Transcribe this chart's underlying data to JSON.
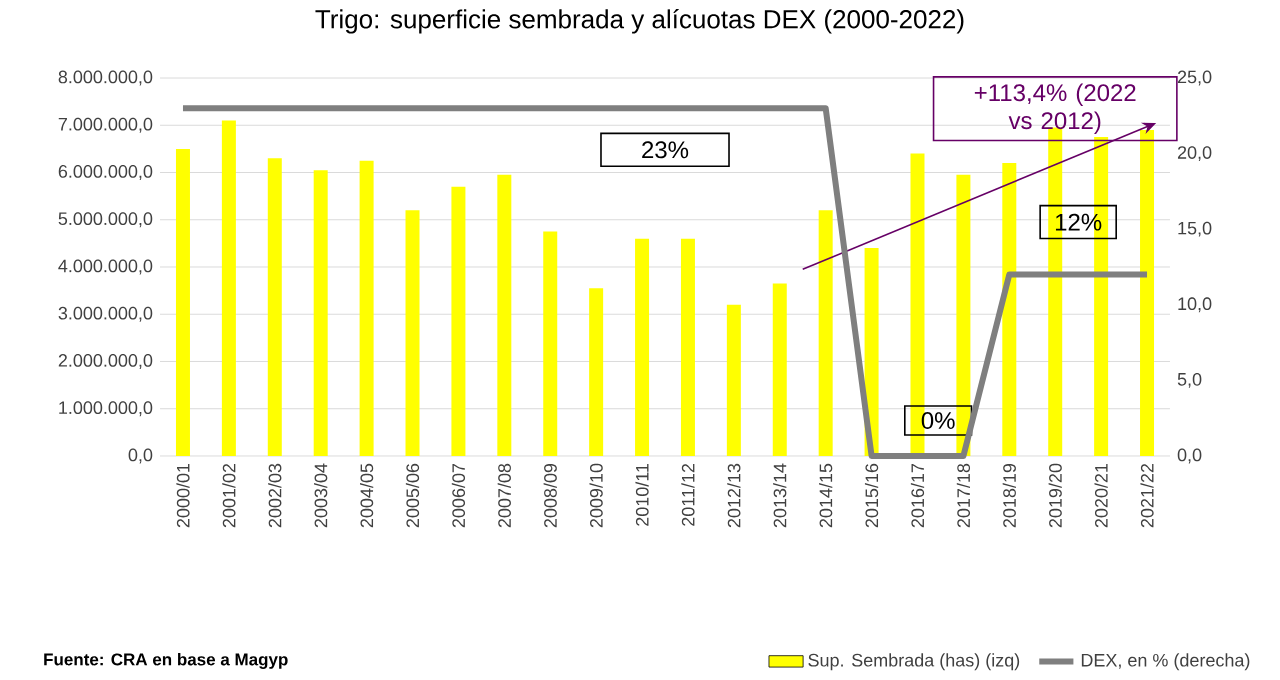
{
  "chart_data": {
    "type": "bar",
    "title": "Trigo: superficie sembrada y alícuotas DEX (2000-2022)",
    "categories": [
      "2000/01",
      "2001/02",
      "2002/03",
      "2003/04",
      "2004/05",
      "2005/06",
      "2006/07",
      "2007/08",
      "2008/09",
      "2009/10",
      "2010/11",
      "2011/12",
      "2012/13",
      "2013/14",
      "2014/15",
      "2015/16",
      "2016/17",
      "2017/18",
      "2018/19",
      "2019/20",
      "2020/21",
      "2021/22"
    ],
    "series": [
      {
        "name": "Sup. Sembrada (has) (izq)",
        "color": "#ffff00",
        "values": [
          6500000,
          7100000,
          6300000,
          6050000,
          6250000,
          5200000,
          5700000,
          5950000,
          4750000,
          3550000,
          4600000,
          4600000,
          3200000,
          3650000,
          5200000,
          4400000,
          6400000,
          5950000,
          6200000,
          6950000,
          6750000,
          6900000
        ]
      },
      {
        "name": "DEX, en %  (derecha)",
        "type": "line",
        "axis": "y2",
        "color": "#7f7f7f",
        "values": [
          23,
          23,
          23,
          23,
          23,
          23,
          23,
          23,
          23,
          23,
          23,
          23,
          23,
          23,
          23,
          0,
          0,
          0,
          12,
          12,
          12,
          12
        ]
      }
    ],
    "ylim": [
      0,
      8000000
    ],
    "yticks": [
      {
        "value": 0,
        "label": "0,0"
      },
      {
        "value": 1000000,
        "label": "1.000.000,0"
      },
      {
        "value": 2000000,
        "label": "2.000.000,0"
      },
      {
        "value": 3000000,
        "label": "3.000.000,0"
      },
      {
        "value": 4000000,
        "label": "4.000.000,0"
      },
      {
        "value": 5000000,
        "label": "5.000.000,0"
      },
      {
        "value": 6000000,
        "label": "6.000.000,0"
      },
      {
        "value": 7000000,
        "label": "7.000.000,0"
      },
      {
        "value": 8000000,
        "label": "8.000.000,0"
      }
    ],
    "y2lim": [
      0,
      25
    ],
    "y2ticks": [
      {
        "value": 0,
        "label": "0,0"
      },
      {
        "value": 5,
        "label": "5,0"
      },
      {
        "value": 10,
        "label": "10,0"
      },
      {
        "value": 15,
        "label": "15,0"
      },
      {
        "value": 20,
        "label": "20,0"
      },
      {
        "value": 25,
        "label": "25,0"
      }
    ],
    "grid": "y",
    "legend": "bottom",
    "annotations": [
      "23%",
      "0%",
      "12%",
      "+113,4%  (2022 vs 2012)",
      "Fuente: CRA en base a Magyp"
    ]
  }
}
